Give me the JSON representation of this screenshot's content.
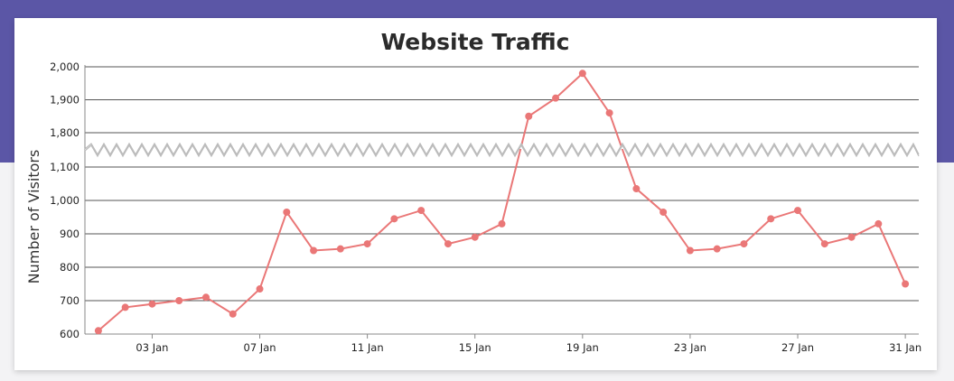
{
  "chart_data": {
    "type": "line",
    "title": "Website Traffic",
    "xlabel": "",
    "ylabel": "Number of Visitors",
    "axis_break": {
      "from": 1100,
      "to": 1750
    },
    "y_ticks": [
      600,
      700,
      800,
      900,
      1000,
      1100,
      1800,
      1900,
      2000
    ],
    "y_tick_labels": [
      "600",
      "700",
      "800",
      "900",
      "1,000",
      "1,100",
      "1,800",
      "1,900",
      "2,000"
    ],
    "x_ticks": [
      3,
      7,
      11,
      15,
      19,
      23,
      27,
      31
    ],
    "x_tick_labels": [
      "03 Jan",
      "07 Jan",
      "11 Jan",
      "15 Jan",
      "19 Jan",
      "23 Jan",
      "27 Jan",
      "31 Jan"
    ],
    "xlim": [
      0.5,
      31.5
    ],
    "grid": true,
    "series": [
      {
        "color": "#ea7777",
        "x": [
          1,
          2,
          3,
          4,
          5,
          6,
          7,
          8,
          9,
          10,
          11,
          12,
          13,
          14,
          15,
          16,
          17,
          18,
          19,
          20,
          21,
          22,
          23,
          24,
          25,
          26,
          27,
          28,
          29,
          30,
          31
        ],
        "values": [
          610,
          680,
          690,
          700,
          710,
          660,
          735,
          965,
          850,
          855,
          870,
          945,
          970,
          870,
          890,
          930,
          1850,
          1905,
          1980,
          1860,
          1035,
          965,
          850,
          855,
          870,
          945,
          970,
          870,
          890,
          930,
          750
        ]
      }
    ]
  }
}
